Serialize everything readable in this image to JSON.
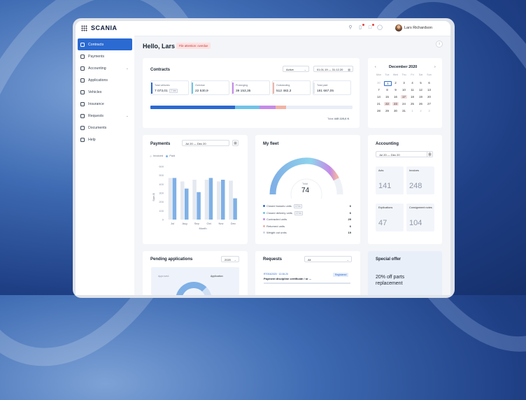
{
  "header": {
    "logo": "SCANIA",
    "user_name": "Lars Richardson"
  },
  "sidebar": {
    "items": [
      {
        "label": "Contracts",
        "icon": "document-icon",
        "active": true
      },
      {
        "label": "Payments",
        "icon": "dollar-icon"
      },
      {
        "label": "Accounting",
        "icon": "swap-icon",
        "chevron": true
      },
      {
        "label": "Applications",
        "icon": "file-icon"
      },
      {
        "label": "Vehicles",
        "icon": "truck-icon"
      },
      {
        "label": "Insurance",
        "icon": "shield-icon"
      },
      {
        "label": "Requests",
        "icon": "inbox-icon",
        "chevron": true
      },
      {
        "label": "Documents",
        "icon": "folder-icon"
      },
      {
        "label": "Help",
        "icon": "help-icon"
      }
    ]
  },
  "greeting": "Hello, Lars",
  "warning_badge": "File attention: overdue",
  "contracts": {
    "title": "Contracts",
    "filter": "Active",
    "date_range": "01.01.19 — 31.12.20",
    "stats": [
      {
        "label": "Total vehicles",
        "value": "7 073,01",
        "chip": "2 Veh",
        "color": "#2b6ad1"
      },
      {
        "label": "Overdue",
        "value": "22 530,9",
        "color": "#6fc3e8"
      },
      {
        "label": "Prolonging",
        "value": "39 153,35",
        "color": "#c58be8"
      },
      {
        "label": "Outstanding",
        "value": "512 482,3",
        "color": "#f0b3a7"
      },
      {
        "label": "Total paid",
        "value": "181 667,05",
        "color": "#e5e9f0"
      }
    ],
    "total_label": "Total",
    "total_value": "445 220,6 K",
    "progress": [
      0.42,
      0.12,
      0.08,
      0.05
    ]
  },
  "calendar": {
    "month": "December 2020",
    "weekdays": [
      "Mon",
      "Tue",
      "Wed",
      "Thu",
      "Fri",
      "Sat",
      "Sun"
    ],
    "rows": [
      [
        "30",
        "1",
        "2",
        "3",
        "4",
        "5",
        "6"
      ],
      [
        "7",
        "8",
        "9",
        "10",
        "11",
        "12",
        "13"
      ],
      [
        "14",
        "15",
        "16",
        "17",
        "18",
        "19",
        "20"
      ],
      [
        "21",
        "22",
        "23",
        "24",
        "25",
        "26",
        "27"
      ],
      [
        "28",
        "29",
        "30",
        "31",
        "1",
        "2",
        "3"
      ]
    ],
    "selected_day": "1",
    "event_days": [
      "17",
      "22",
      "23"
    ]
  },
  "payments": {
    "title": "Payments",
    "date_range": "Jul 20 — Dec 20",
    "legend": [
      "Invoiced",
      "Paid"
    ],
    "ylabel": "Sum $",
    "xlabel": "Month",
    "yticks": [
      "600",
      "500",
      "400",
      "300",
      "200",
      "100",
      "0"
    ],
    "chart_data": {
      "type": "bar",
      "categories": [
        "Jul",
        "Aug",
        "Sep",
        "Oct",
        "Nov",
        "Dec"
      ],
      "ylim": [
        0,
        600
      ],
      "series": [
        {
          "name": "Invoiced",
          "values": [
            470,
            430,
            450,
            450,
            430,
            440
          ]
        },
        {
          "name": "Paid",
          "values": [
            470,
            350,
            310,
            470,
            450,
            240
          ]
        }
      ]
    }
  },
  "fleet": {
    "title": "My fleet",
    "gauge_label": "Total",
    "gauge_value": "74",
    "gauge_fill": 0.85,
    "rows": [
      {
        "label": "Closed busses units",
        "chip": "12 tm",
        "value": "6",
        "color": "#2b6ad1"
      },
      {
        "label": "Closed delivery units",
        "chip": "12 tm",
        "value": "6",
        "color": "#6fc3e8"
      },
      {
        "label": "Contracted units",
        "value": "29",
        "color": "#c58be8"
      },
      {
        "label": "Returned units",
        "value": "6",
        "color": "#f0b3a7"
      },
      {
        "label": "Weight out units",
        "value": "19",
        "color": "#cfd6e2"
      }
    ]
  },
  "accounting": {
    "title": "Accounting",
    "date_range": "Jul 20 — Dec 20",
    "tiles": [
      {
        "label": "Acts",
        "value": "141"
      },
      {
        "label": "Invoices",
        "value": "248"
      },
      {
        "label": "Explications",
        "value": "47"
      },
      {
        "label": "Consignment notes",
        "value": "104"
      }
    ]
  },
  "pending": {
    "title": "Pending applications",
    "year": "2020",
    "labels": [
      "Approved",
      "Application"
    ]
  },
  "requests": {
    "title": "Requests",
    "filter": "All",
    "item_id": "RT004/2020 · 12.06.20",
    "item_text": "Payment discipline certificate / or ...",
    "item_status": "Registered"
  },
  "special_offer": {
    "title": "Special offer",
    "text": "20% off parts replacement"
  }
}
